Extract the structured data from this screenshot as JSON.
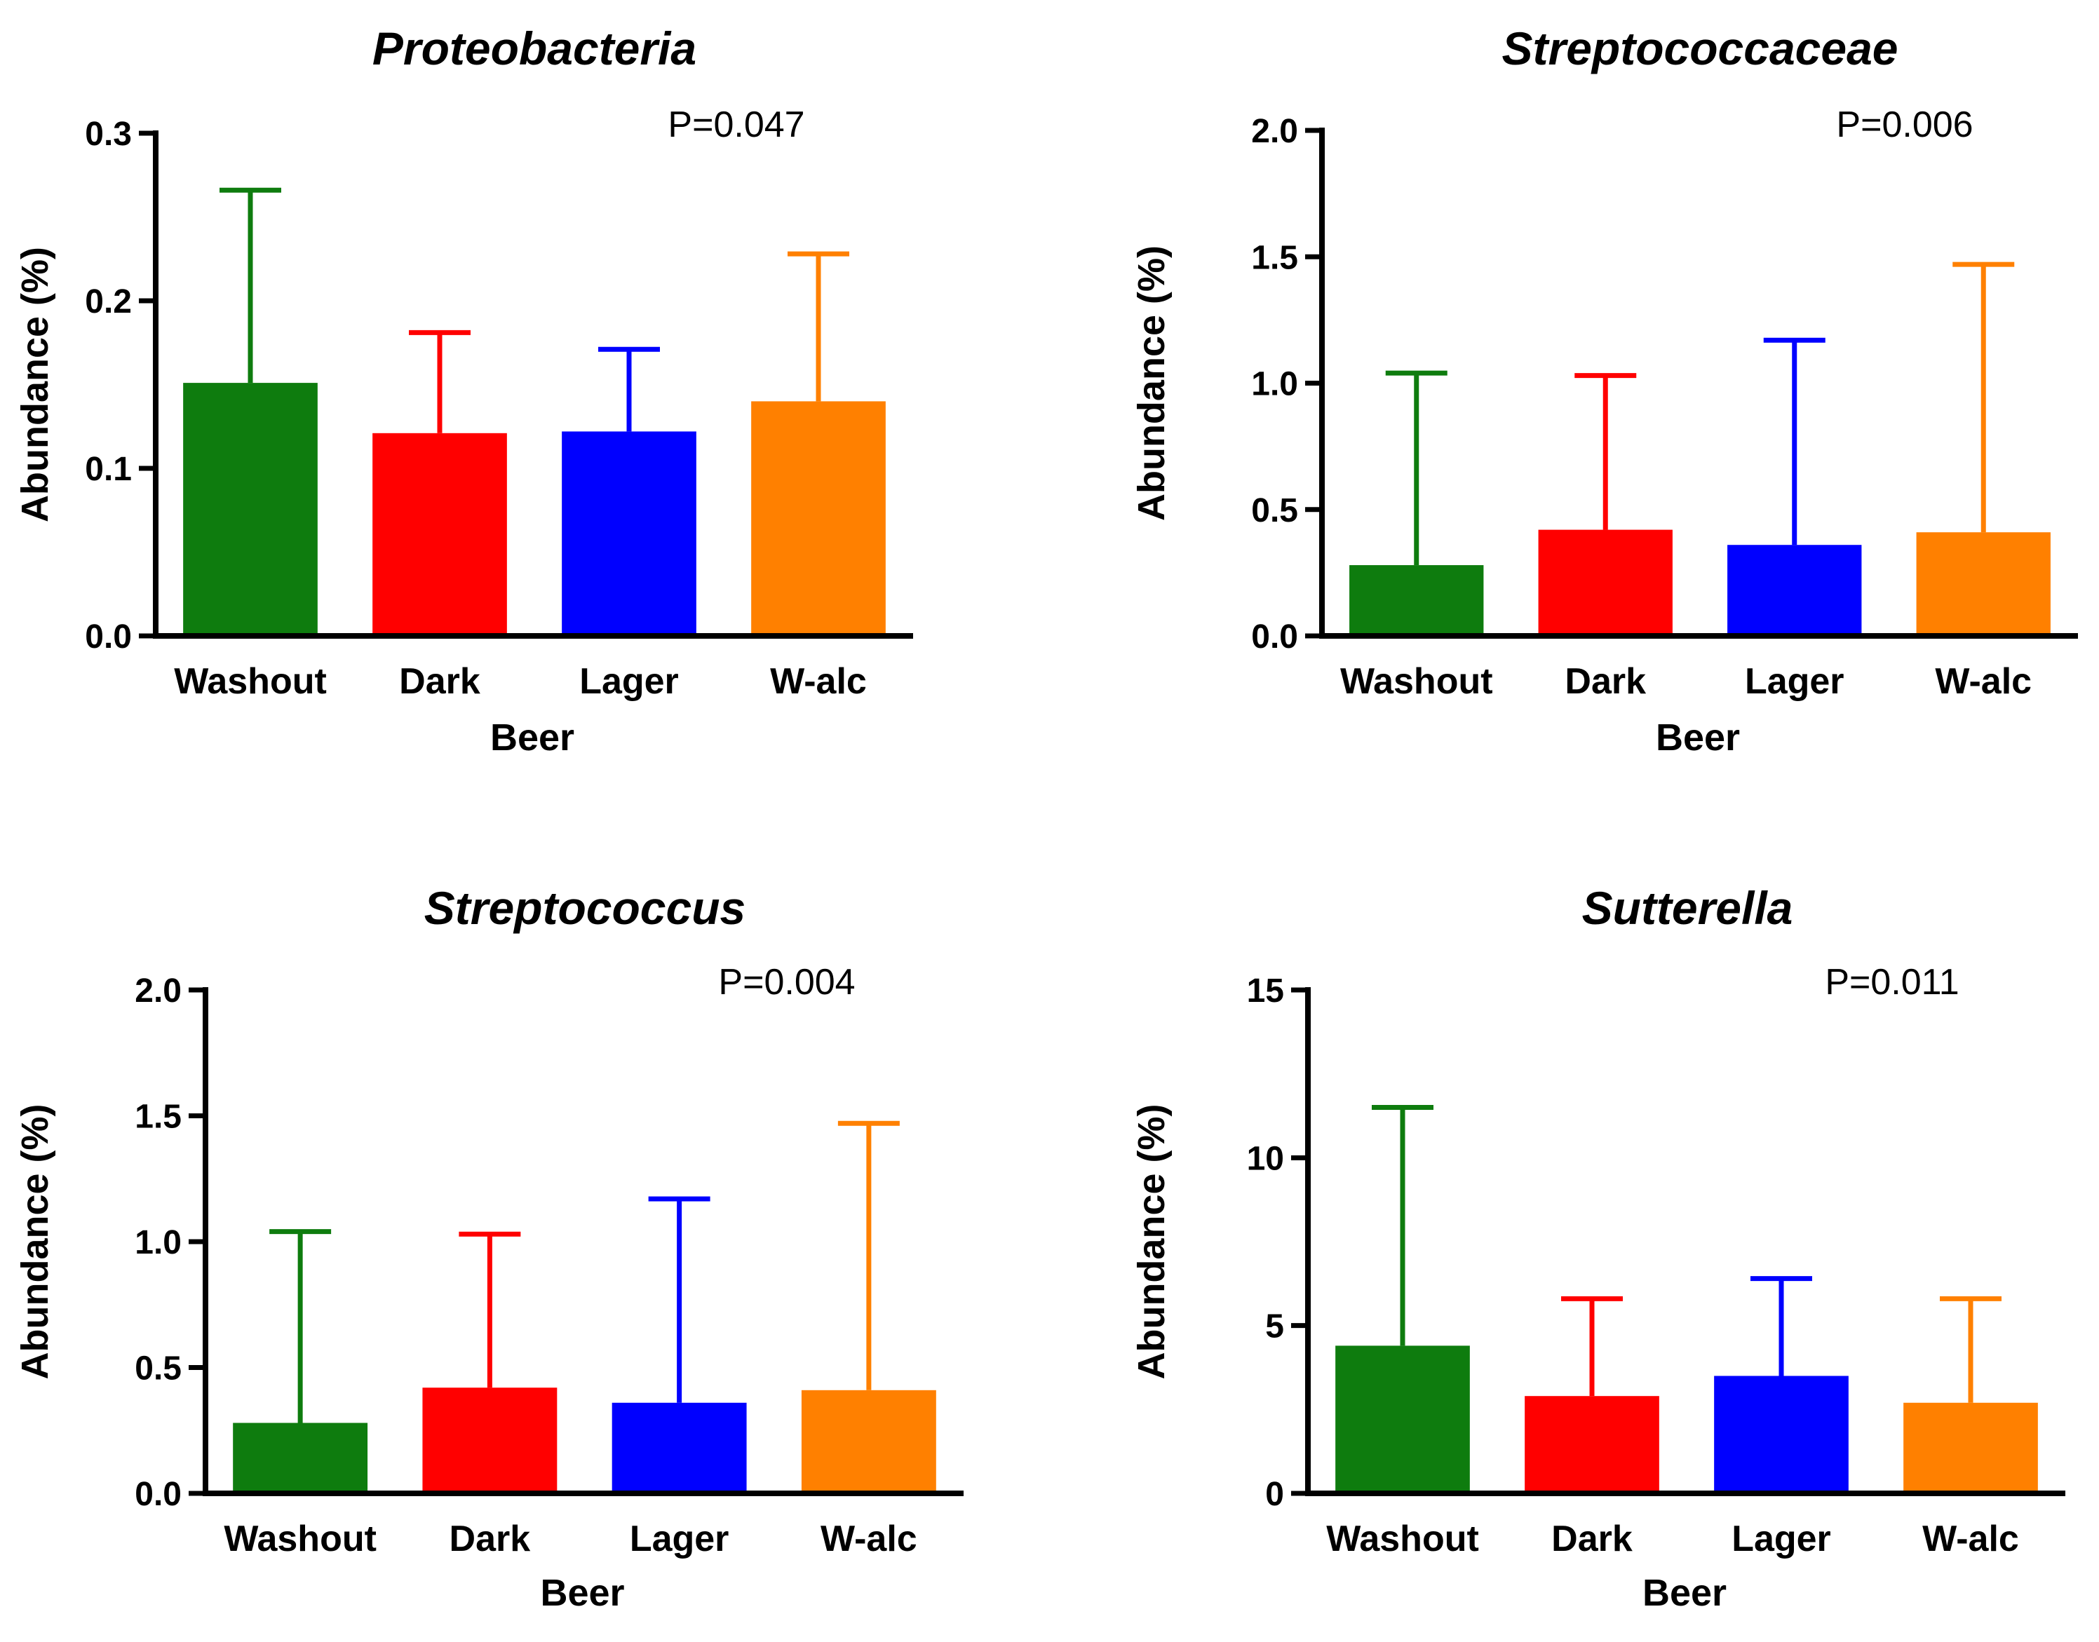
{
  "chart_data": [
    {
      "type": "bar",
      "title": "Proteobacteria",
      "annotation": "P=0.047",
      "xlabel": "Beer",
      "ylabel": "Abundance (%)",
      "categories": [
        "Washout",
        "Dark",
        "Lager",
        "W-alc"
      ],
      "values": [
        0.151,
        0.121,
        0.122,
        0.14
      ],
      "error_upper": [
        0.266,
        0.181,
        0.171,
        0.228
      ],
      "ylim": [
        0,
        0.3
      ],
      "yticks": [
        0.0,
        0.1,
        0.2,
        0.3
      ],
      "ytick_labels": [
        "0.0",
        "0.1",
        "0.2",
        "0.3"
      ],
      "grid": false
    },
    {
      "type": "bar",
      "title": "Streptococcaceae",
      "annotation": "P=0.006",
      "xlabel": "Beer",
      "ylabel": "Abundance (%)",
      "categories": [
        "Washout",
        "Dark",
        "Lager",
        "W-alc"
      ],
      "values": [
        0.28,
        0.42,
        0.36,
        0.41
      ],
      "error_upper": [
        1.04,
        1.03,
        1.17,
        1.47
      ],
      "ylim": [
        0,
        2.0
      ],
      "yticks": [
        0.0,
        0.5,
        1.0,
        1.5,
        2.0
      ],
      "ytick_labels": [
        "0.0",
        "0.5",
        "1.0",
        "1.5",
        "2.0"
      ],
      "grid": false
    },
    {
      "type": "bar",
      "title": "Streptococcus",
      "annotation": "P=0.004",
      "xlabel": "Beer",
      "ylabel": "Abundance (%)",
      "categories": [
        "Washout",
        "Dark",
        "Lager",
        "W-alc"
      ],
      "values": [
        0.28,
        0.42,
        0.36,
        0.41
      ],
      "error_upper": [
        1.04,
        1.03,
        1.17,
        1.47
      ],
      "ylim": [
        0,
        2.0
      ],
      "yticks": [
        0.0,
        0.5,
        1.0,
        1.5,
        2.0
      ],
      "ytick_labels": [
        "0.0",
        "0.5",
        "1.0",
        "1.5",
        "2.0"
      ],
      "grid": false
    },
    {
      "type": "bar",
      "title": "Sutterella",
      "annotation": "P=0.011",
      "xlabel": "Beer",
      "ylabel": "Abundance (%)",
      "categories": [
        "Washout",
        "Dark",
        "Lager",
        "W-alc"
      ],
      "values": [
        4.4,
        2.9,
        3.5,
        2.7
      ],
      "error_upper": [
        11.5,
        5.8,
        6.4,
        5.8
      ],
      "ylim": [
        0,
        15
      ],
      "yticks": [
        0,
        5,
        10,
        15
      ],
      "ytick_labels": [
        "0",
        "5",
        "10",
        "15"
      ],
      "grid": false
    }
  ],
  "colors": {
    "Washout": "#0e7c0e",
    "Dark": "#ff0000",
    "Lager": "#0000ff",
    "W-alc": "#ff8000",
    "axis": "#000000"
  }
}
